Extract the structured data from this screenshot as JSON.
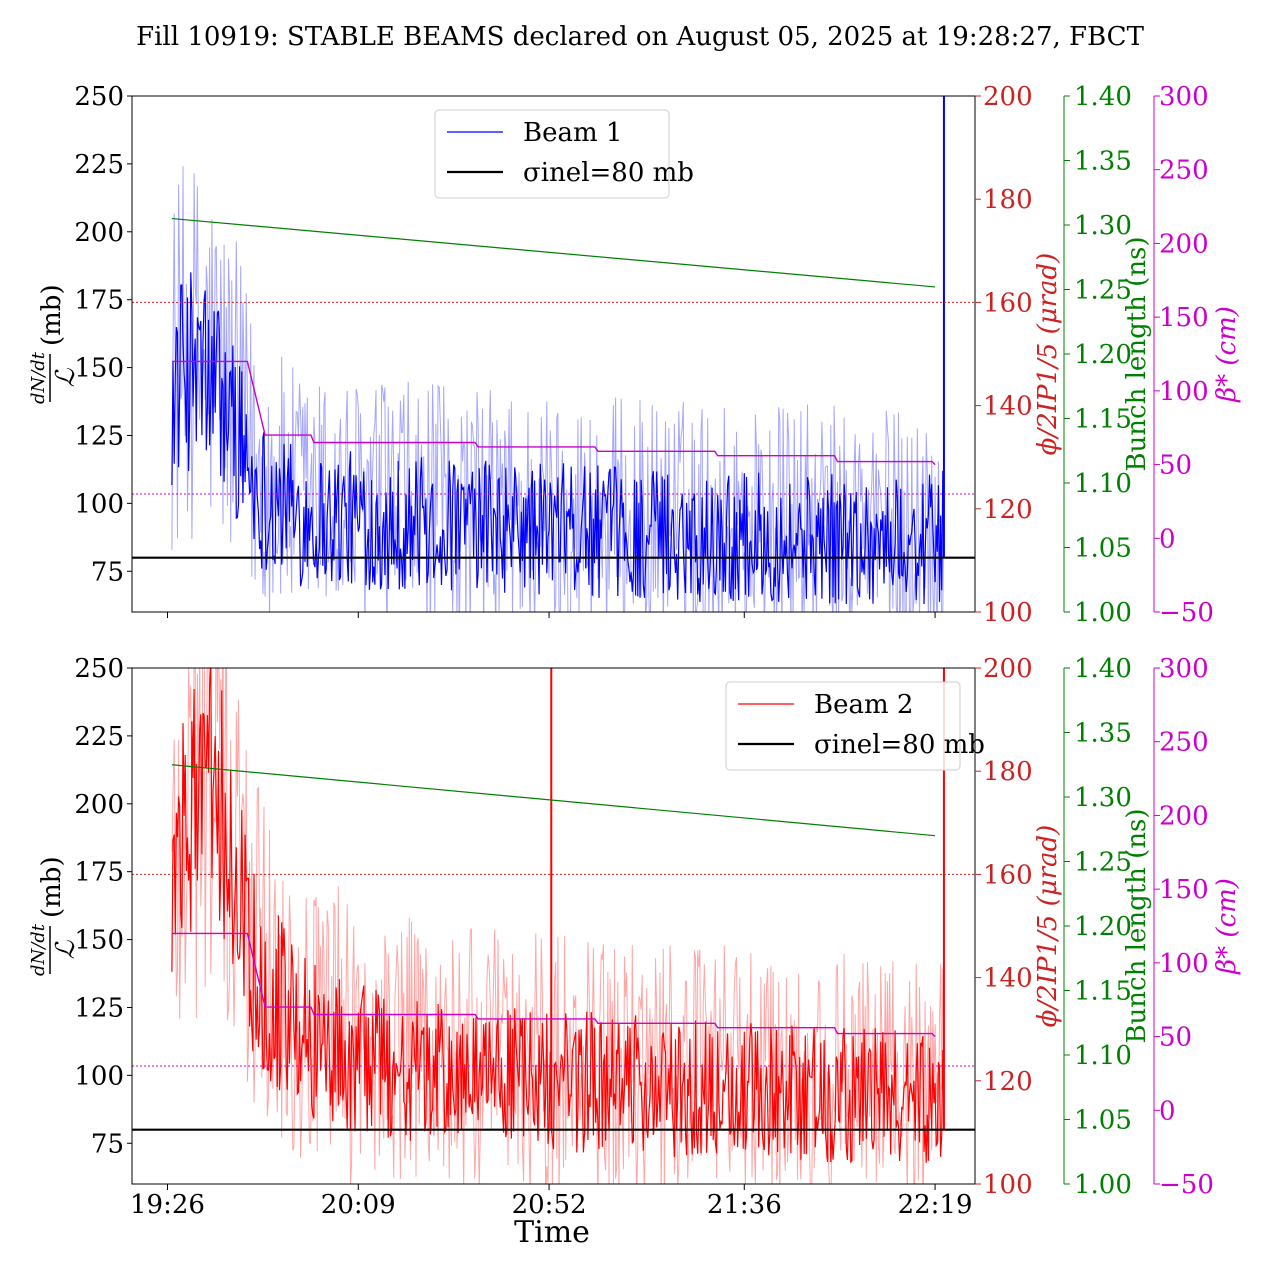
{
  "title": "Fill 10919: STABLE BEAMS declared on August 05, 2025 at 19:28:27, FBCT",
  "xlabel": "Time",
  "x_ticks": [
    "19:26",
    "20:09",
    "20:52",
    "21:36",
    "22:19"
  ],
  "axis_labels": {
    "left": "(mb)",
    "right1": "ϕ/2IP1/5 (μrad)",
    "right2": "Bunch length (ns)",
    "right3": "β* (cm)"
  },
  "colors": {
    "beam1": "#0000ff",
    "beam2": "#ff0000",
    "sigma": "#000000",
    "crossing": "#cc2222",
    "bunch_length": "#008000",
    "beta": "#cc00cc"
  },
  "chart_data": [
    {
      "type": "line",
      "name_panel": "top",
      "ylim": [
        60,
        250
      ],
      "y_ticks": [
        75,
        100,
        125,
        150,
        175,
        200,
        225,
        250
      ],
      "right1_lim": [
        100,
        200
      ],
      "right1_ticks": [
        100,
        120,
        140,
        160,
        180,
        200
      ],
      "right2_lim": [
        1.0,
        1.4
      ],
      "right2_ticks": [
        "1.00",
        "1.05",
        "1.10",
        "1.15",
        "1.20",
        "1.25",
        "1.30",
        "1.35",
        "1.40"
      ],
      "right3_lim": [
        -50,
        300
      ],
      "right3_ticks": [
        -50,
        0,
        50,
        100,
        150,
        200,
        250,
        300
      ],
      "legend": [
        "Beam 1",
        "σinel=80 mb"
      ],
      "legend_position": "upper-center",
      "series": [
        {
          "name": "Beam 1",
          "axis": "left",
          "profile": [
            [
              0,
              140
            ],
            [
              5,
              150
            ],
            [
              10,
              145
            ],
            [
              15,
              130
            ],
            [
              20,
              105
            ],
            [
              30,
              95
            ],
            [
              60,
              92
            ],
            [
              120,
              88
            ],
            [
              170,
              86
            ],
            [
              175,
              88
            ]
          ]
        },
        {
          "name": "σinel=80 mb",
          "axis": "left",
          "x": [
            0,
            180
          ],
          "y": [
            80,
            80
          ]
        },
        {
          "name": "Bunch length",
          "axis": "right2",
          "x": [
            1,
            173
          ],
          "y": [
            1.305,
            1.252
          ]
        },
        {
          "name": "Crossing angle",
          "axis": "right1",
          "x": [
            -8,
            182
          ],
          "y": [
            160,
            160
          ]
        },
        {
          "name": "β*",
          "axis": "right3",
          "x": [
            1,
            18,
            22,
            33,
            70,
            97,
            124,
            151,
            173
          ],
          "y": [
            120,
            120,
            70,
            65,
            62,
            59,
            56,
            52,
            50
          ]
        },
        {
          "name": "β* reference",
          "axis": "right3",
          "x": [
            -8,
            182
          ],
          "y": [
            30,
            30
          ]
        }
      ]
    },
    {
      "type": "line",
      "name_panel": "bottom",
      "ylim": [
        60,
        250
      ],
      "y_ticks": [
        75,
        100,
        125,
        150,
        175,
        200,
        225,
        250
      ],
      "right1_lim": [
        100,
        200
      ],
      "right1_ticks": [
        100,
        120,
        140,
        160,
        180,
        200
      ],
      "right2_lim": [
        1.0,
        1.4
      ],
      "right2_ticks": [
        "1.00",
        "1.05",
        "1.10",
        "1.15",
        "1.20",
        "1.25",
        "1.30",
        "1.35",
        "1.40"
      ],
      "right3_lim": [
        -50,
        300
      ],
      "right3_ticks": [
        -50,
        0,
        50,
        100,
        150,
        200,
        250,
        300
      ],
      "legend": [
        "Beam 2",
        "σinel=80 mb"
      ],
      "legend_position": "upper-right",
      "series": [
        {
          "name": "Beam 2",
          "axis": "left",
          "profile": [
            [
              0,
              160
            ],
            [
              5,
              195
            ],
            [
              10,
              210
            ],
            [
              15,
              175
            ],
            [
              20,
              140
            ],
            [
              30,
              115
            ],
            [
              45,
              105
            ],
            [
              60,
              100
            ],
            [
              120,
              95
            ],
            [
              170,
              92
            ],
            [
              175,
              95
            ]
          ]
        },
        {
          "name": "σinel=80 mb",
          "axis": "left",
          "x": [
            0,
            180
          ],
          "y": [
            80,
            80
          ]
        },
        {
          "name": "Bunch length",
          "axis": "right2",
          "x": [
            1,
            173
          ],
          "y": [
            1.325,
            1.27
          ]
        },
        {
          "name": "Crossing angle",
          "axis": "right1",
          "x": [
            -8,
            182
          ],
          "y": [
            160,
            160
          ]
        },
        {
          "name": "β*",
          "axis": "right3",
          "x": [
            1,
            18,
            22,
            33,
            70,
            97,
            124,
            151,
            173
          ],
          "y": [
            120,
            120,
            70,
            65,
            62,
            59,
            56,
            52,
            50
          ]
        },
        {
          "name": "β* reference",
          "axis": "right3",
          "x": [
            -8,
            182
          ],
          "y": [
            30,
            30
          ]
        }
      ]
    }
  ]
}
